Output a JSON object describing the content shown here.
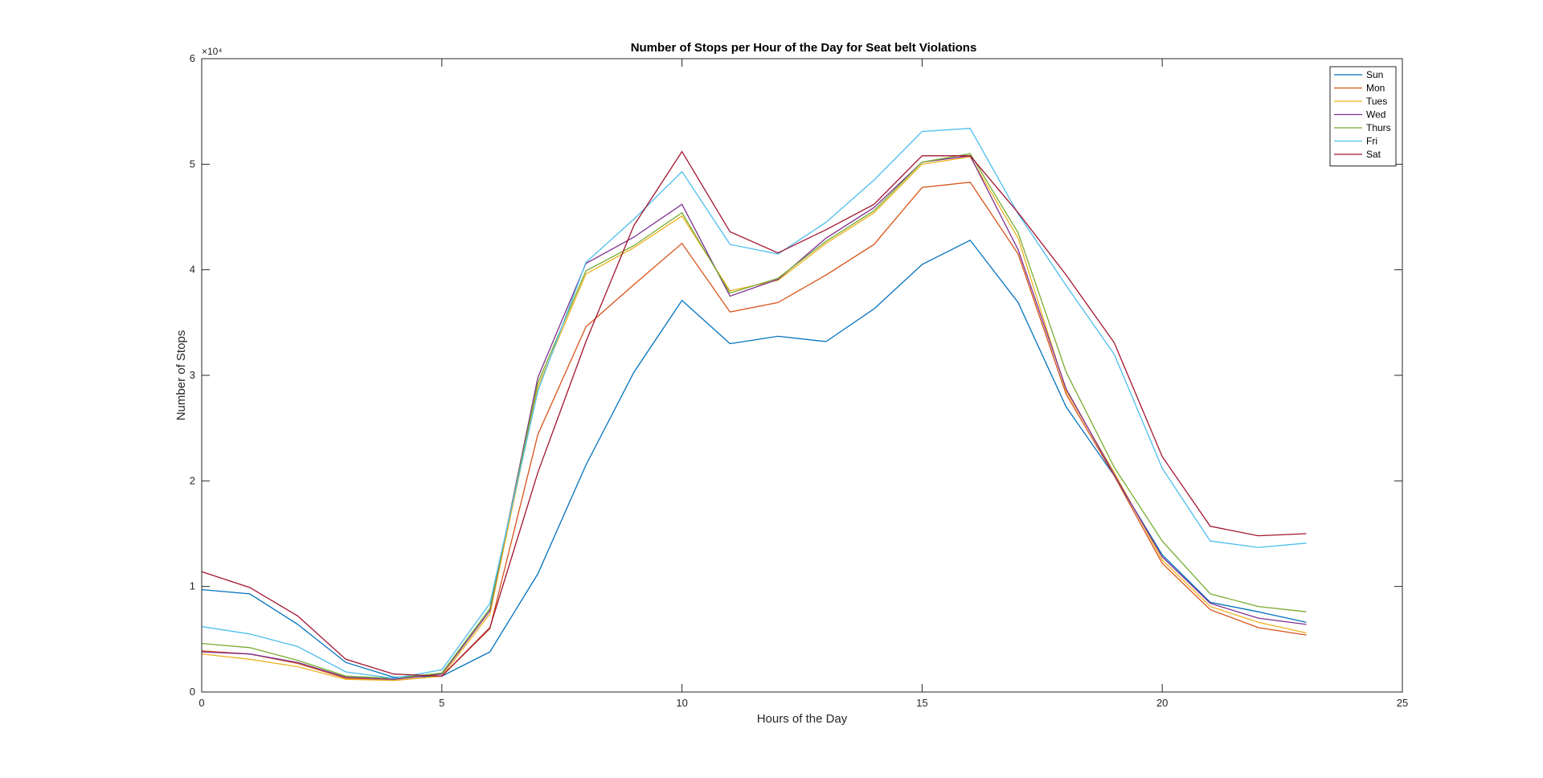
{
  "chart_data": {
    "type": "line",
    "title": "Number of Stops per Hour of the Day for Seat belt Violations",
    "xlabel": "Hours of the Day",
    "ylabel": "Number of Stops",
    "xlim": [
      0,
      25
    ],
    "ylim": [
      0,
      60000
    ],
    "y_exponent_label": "×10⁴",
    "xticks": [
      0,
      5,
      10,
      15,
      20,
      25
    ],
    "yticks": [
      0,
      10000,
      20000,
      30000,
      40000,
      50000,
      60000
    ],
    "ytick_labels": [
      "0",
      "1",
      "2",
      "3",
      "4",
      "5",
      "6"
    ],
    "grid": false,
    "legend_position": "top-right",
    "x": [
      0,
      1,
      2,
      3,
      4,
      5,
      6,
      7,
      8,
      9,
      10,
      11,
      12,
      13,
      14,
      15,
      16,
      17,
      18,
      19,
      20,
      21,
      22,
      23
    ],
    "series": [
      {
        "name": "Sun",
        "color": "#0072BD",
        "values": [
          9700,
          9300,
          6400,
          2800,
          1400,
          1500,
          3800,
          11200,
          21500,
          30300,
          37100,
          33000,
          33700,
          33200,
          36300,
          40500,
          42800,
          36900,
          27000,
          20500,
          13000,
          8500,
          7600,
          6600
        ]
      },
      {
        "name": "Mon",
        "color": "#D95319",
        "values": [
          3900,
          3600,
          2700,
          1300,
          1100,
          1500,
          6000,
          24400,
          34600,
          38600,
          42500,
          36000,
          36900,
          39500,
          42400,
          47800,
          48300,
          41500,
          28200,
          20500,
          12200,
          7800,
          6100,
          5400
        ]
      },
      {
        "name": "Tues",
        "color": "#EDB120",
        "values": [
          3600,
          3100,
          2400,
          1200,
          1100,
          1500,
          7400,
          28900,
          39600,
          42100,
          45100,
          38000,
          39000,
          42500,
          45400,
          50000,
          50700,
          43000,
          28500,
          20800,
          12500,
          8100,
          6600,
          5600
        ]
      },
      {
        "name": "Wed",
        "color": "#7E2F8E",
        "values": [
          3800,
          3600,
          2800,
          1400,
          1200,
          1700,
          7700,
          29800,
          40600,
          43100,
          46200,
          37500,
          39100,
          43000,
          45900,
          50200,
          50800,
          41900,
          28700,
          20600,
          12800,
          8400,
          7000,
          6400
        ]
      },
      {
        "name": "Thurs",
        "color": "#77AC30",
        "values": [
          4600,
          4200,
          3000,
          1500,
          1300,
          1800,
          7900,
          29300,
          39900,
          42300,
          45400,
          37800,
          39200,
          42700,
          45600,
          50200,
          51000,
          43500,
          30300,
          21300,
          14300,
          9300,
          8100,
          7600
        ]
      },
      {
        "name": "Fri",
        "color": "#4DBEEE",
        "values": [
          6200,
          5500,
          4300,
          1900,
          1300,
          2100,
          8400,
          28500,
          40700,
          44800,
          49300,
          42400,
          41500,
          44500,
          48500,
          53100,
          53400,
          45300,
          38500,
          32000,
          21200,
          14300,
          13700,
          14100
        ]
      },
      {
        "name": "Sat",
        "color": "#A2142F",
        "values": [
          11400,
          9900,
          7200,
          3100,
          1700,
          1500,
          6100,
          20800,
          33200,
          44200,
          51200,
          43600,
          41600,
          43800,
          46200,
          50800,
          50800,
          45400,
          39500,
          33100,
          22300,
          15700,
          14800,
          15000
        ]
      }
    ]
  }
}
